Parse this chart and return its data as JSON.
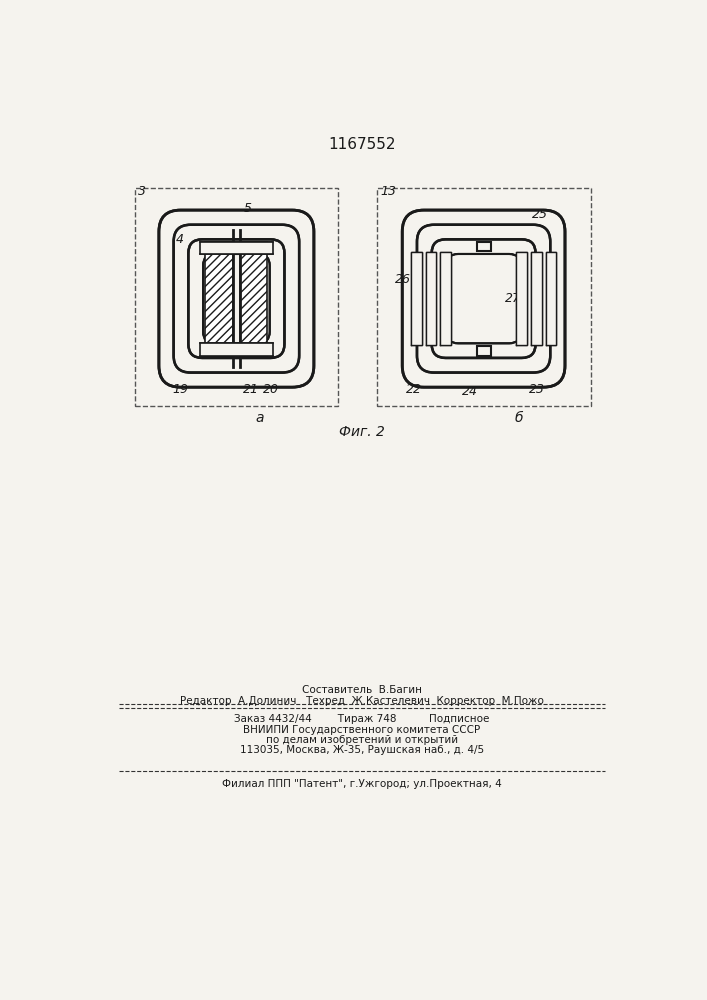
{
  "title": "1167552",
  "fig_label_a": "а",
  "fig_label_b": "б",
  "fig_caption": "Фиг. 2",
  "label3": "3",
  "label4": "4",
  "label5": "5",
  "label13": "13",
  "label19": "19",
  "label20": "20",
  "label21": "21",
  "label22": "22",
  "label23": "23",
  "label24": "24",
  "label25": "25",
  "label26": "26",
  "label27": "27",
  "footer_line1": "Составитель  В.Багин",
  "footer_line2": "Редактор  А.Долинич   Техред  Ж.Кастелевич  Корректор  М.Пожо",
  "footer_line3": "Заказ 4432/44        Тираж 748          Подписное",
  "footer_line4": "ВНИИПИ Государственного комитета СССР",
  "footer_line5": "по делам изобретений и открытий",
  "footer_line6": "113035, Москва, Ж-35, Раушская наб., д. 4/5",
  "footer_line7": "Филиал ППП \"Патент\", г.Ужгород; ул.Проектная, 4",
  "bg_color": "#f5f3ee",
  "line_color": "#1a1a1a"
}
